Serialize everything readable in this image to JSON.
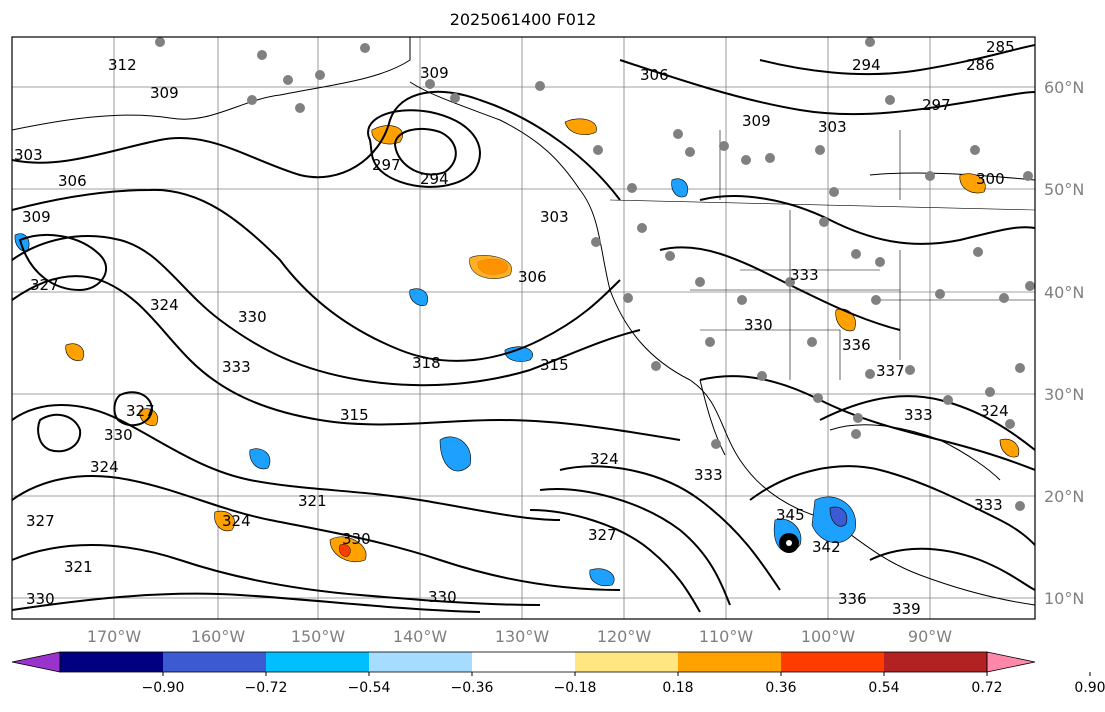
{
  "title": "2025061400 F012",
  "map": {
    "lon_ticks": [
      "170°W",
      "160°W",
      "150°W",
      "140°W",
      "130°W",
      "120°W",
      "110°W",
      "100°W",
      "90°W"
    ],
    "lat_ticks": [
      "60°N",
      "50°N",
      "40°N",
      "30°N",
      "20°N",
      "10°N"
    ],
    "contour_labels": [
      "312",
      "309",
      "303",
      "306",
      "309",
      "327",
      "324",
      "330",
      "333",
      "330",
      "327",
      "324",
      "321",
      "327",
      "330",
      "324",
      "309",
      "294",
      "297",
      "303",
      "306",
      "318",
      "315",
      "315",
      "321",
      "324",
      "327",
      "330",
      "333",
      "345",
      "342",
      "336",
      "339",
      "306",
      "309",
      "303",
      "294",
      "297",
      "300",
      "286",
      "285",
      "333",
      "330",
      "336",
      "333",
      "324",
      "333",
      "330",
      "337"
    ],
    "colors": {
      "land_outline": "#000000",
      "grid": "#808080",
      "station_dot": "#808080",
      "blue_fill": "#1ea0ff",
      "deep_blue_fill": "#3c5ad2",
      "light_blue_fill": "#a6dcff",
      "orange_fill": "#ffa200",
      "red_orange_fill": "#ff3c00"
    }
  },
  "colorbar": {
    "tick_labels": [
      "−0.90",
      "−0.72",
      "−0.54",
      "−0.36",
      "−0.18",
      "0.18",
      "0.36",
      "0.54",
      "0.72",
      "0.90"
    ],
    "colors": [
      "#9933cc",
      "#000080",
      "#3c5ad2",
      "#00bfff",
      "#a6dcff",
      "#ffffff",
      "#ffe680",
      "#ffa200",
      "#ff3c00",
      "#b22222",
      "#ff88aa"
    ]
  }
}
